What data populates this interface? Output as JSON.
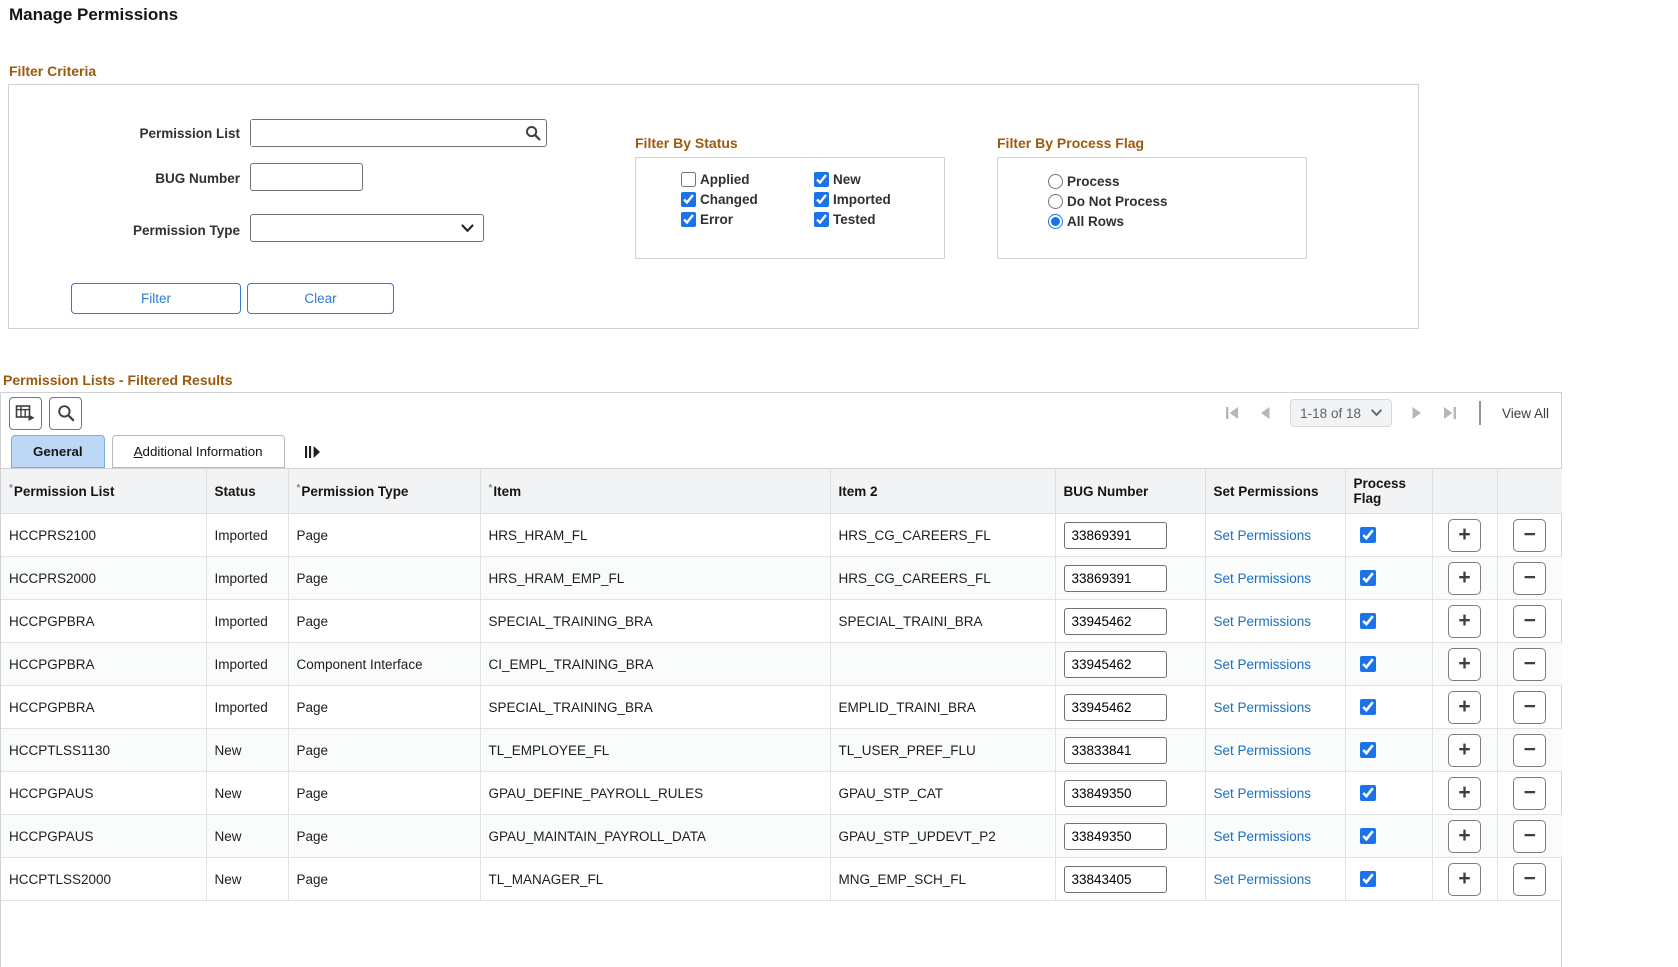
{
  "page": {
    "title": "Manage Permissions"
  },
  "colors": {
    "heading": "#9d5a0c",
    "link": "#1a6fc4",
    "accent_blue": "#2e7cd6",
    "checkbox_blue": "#1a73e8",
    "selected_tab_bg": "#bdd8f5"
  },
  "filter": {
    "heading": "Filter Criteria",
    "fields": {
      "permission_list": {
        "label": "Permission List",
        "value": "",
        "lookup_icon": "search-icon"
      },
      "bug_number": {
        "label": "BUG Number",
        "value": ""
      },
      "permission_type": {
        "label": "Permission Type",
        "value": "",
        "icon": "chevron-down-icon"
      }
    },
    "status": {
      "heading": "Filter By Status",
      "options": [
        {
          "label": "Applied",
          "checked": false
        },
        {
          "label": "Changed",
          "checked": true
        },
        {
          "label": "Error",
          "checked": true
        },
        {
          "label": "New",
          "checked": true
        },
        {
          "label": "Imported",
          "checked": true
        },
        {
          "label": "Tested",
          "checked": true
        }
      ]
    },
    "process_flag": {
      "heading": "Filter By Process Flag",
      "options": [
        {
          "label": "Process",
          "selected": false
        },
        {
          "label": "Do Not Process",
          "selected": false
        },
        {
          "label": "All Rows",
          "selected": true
        }
      ]
    },
    "buttons": {
      "filter": "Filter",
      "clear": "Clear"
    }
  },
  "results": {
    "heading": "Permission Lists - Filtered Results",
    "toolbar": {
      "icons": [
        "grid-action-menu-icon",
        "search-icon"
      ],
      "pagination": {
        "first_icon": "first-page-icon",
        "prev_icon": "previous-page-icon",
        "range": "1-18 of 18",
        "range_icon": "chevron-down-icon",
        "next_icon": "next-page-icon",
        "last_icon": "last-page-icon",
        "view_all": "View All"
      }
    },
    "tabs": [
      {
        "label": "General",
        "selected": true,
        "underline_first": false
      },
      {
        "label": "Additional Information",
        "selected": false,
        "underline_first": true
      }
    ],
    "show_all_columns_icon": "show-all-columns-icon",
    "table": {
      "columns": [
        {
          "label": "Permission List",
          "required": true
        },
        {
          "label": "Status",
          "required": false
        },
        {
          "label": "Permission Type",
          "required": true
        },
        {
          "label": "Item",
          "required": true
        },
        {
          "label": "Item 2",
          "required": false
        },
        {
          "label": "BUG Number",
          "required": false
        },
        {
          "label": "Set Permissions",
          "required": false
        },
        {
          "label": "Process Flag",
          "required": false
        },
        {
          "label": "",
          "required": false
        },
        {
          "label": "",
          "required": false
        }
      ],
      "set_permissions_label": "Set Permissions",
      "add_row_icon": "+",
      "remove_row_icon": "−",
      "rows": [
        {
          "permission_list": "HCCPRS2100",
          "status": "Imported",
          "permission_type": "Page",
          "item": "HRS_HRAM_FL",
          "item2": "HRS_CG_CAREERS_FL",
          "bug_number": "33869391",
          "process_flag": true
        },
        {
          "permission_list": "HCCPRS2000",
          "status": "Imported",
          "permission_type": "Page",
          "item": "HRS_HRAM_EMP_FL",
          "item2": "HRS_CG_CAREERS_FL",
          "bug_number": "33869391",
          "process_flag": true
        },
        {
          "permission_list": "HCCPGPBRA",
          "status": "Imported",
          "permission_type": "Page",
          "item": "SPECIAL_TRAINING_BRA",
          "item2": "SPECIAL_TRAINI_BRA",
          "bug_number": "33945462",
          "process_flag": true
        },
        {
          "permission_list": "HCCPGPBRA",
          "status": "Imported",
          "permission_type": "Component Interface",
          "item": "CI_EMPL_TRAINING_BRA",
          "item2": "",
          "bug_number": "33945462",
          "process_flag": true
        },
        {
          "permission_list": "HCCPGPBRA",
          "status": "Imported",
          "permission_type": "Page",
          "item": "SPECIAL_TRAINING_BRA",
          "item2": "EMPLID_TRAINI_BRA",
          "bug_number": "33945462",
          "process_flag": true
        },
        {
          "permission_list": "HCCPTLSS1130",
          "status": "New",
          "permission_type": "Page",
          "item": "TL_EMPLOYEE_FL",
          "item2": "TL_USER_PREF_FLU",
          "bug_number": "33833841",
          "process_flag": true
        },
        {
          "permission_list": "HCCPGPAUS",
          "status": "New",
          "permission_type": "Page",
          "item": "GPAU_DEFINE_PAYROLL_RULES",
          "item2": "GPAU_STP_CAT",
          "bug_number": "33849350",
          "process_flag": true
        },
        {
          "permission_list": "HCCPGPAUS",
          "status": "New",
          "permission_type": "Page",
          "item": "GPAU_MAINTAIN_PAYROLL_DATA",
          "item2": "GPAU_STP_UPDEVT_P2",
          "bug_number": "33849350",
          "process_flag": true
        },
        {
          "permission_list": "HCCPTLSS2000",
          "status": "New",
          "permission_type": "Page",
          "item": "TL_MANAGER_FL",
          "item2": "MNG_EMP_SCH_FL",
          "bug_number": "33843405",
          "process_flag": true
        }
      ]
    }
  }
}
